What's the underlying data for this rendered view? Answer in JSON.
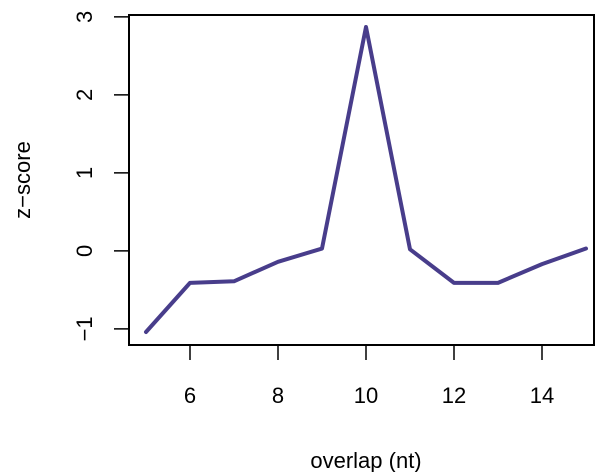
{
  "chart_data": {
    "type": "line",
    "title": "",
    "xlabel": "overlap (nt)",
    "ylabel": "z−score",
    "x": [
      5,
      6,
      7,
      8,
      9,
      10,
      11,
      12,
      13,
      14,
      15
    ],
    "series": [
      {
        "values": [
          -1.04,
          -0.41,
          -0.39,
          -0.14,
          0.03,
          2.87,
          0.02,
          -0.41,
          -0.41,
          -0.17,
          0.03
        ],
        "color": "#483D8B"
      }
    ],
    "xlim": [
      5,
      15
    ],
    "ylim": [
      -1.04,
      2.87
    ],
    "x_ticks": [
      6,
      8,
      10,
      12,
      14
    ],
    "y_ticks": [
      -1,
      0,
      1,
      2,
      3
    ],
    "x_tick_labels": [
      "6",
      "8",
      "10",
      "12",
      "14"
    ],
    "y_tick_labels": [
      "−1",
      "0",
      "1",
      "2",
      "3"
    ],
    "grid": false,
    "legend": "none",
    "axis_color": "#000000"
  }
}
